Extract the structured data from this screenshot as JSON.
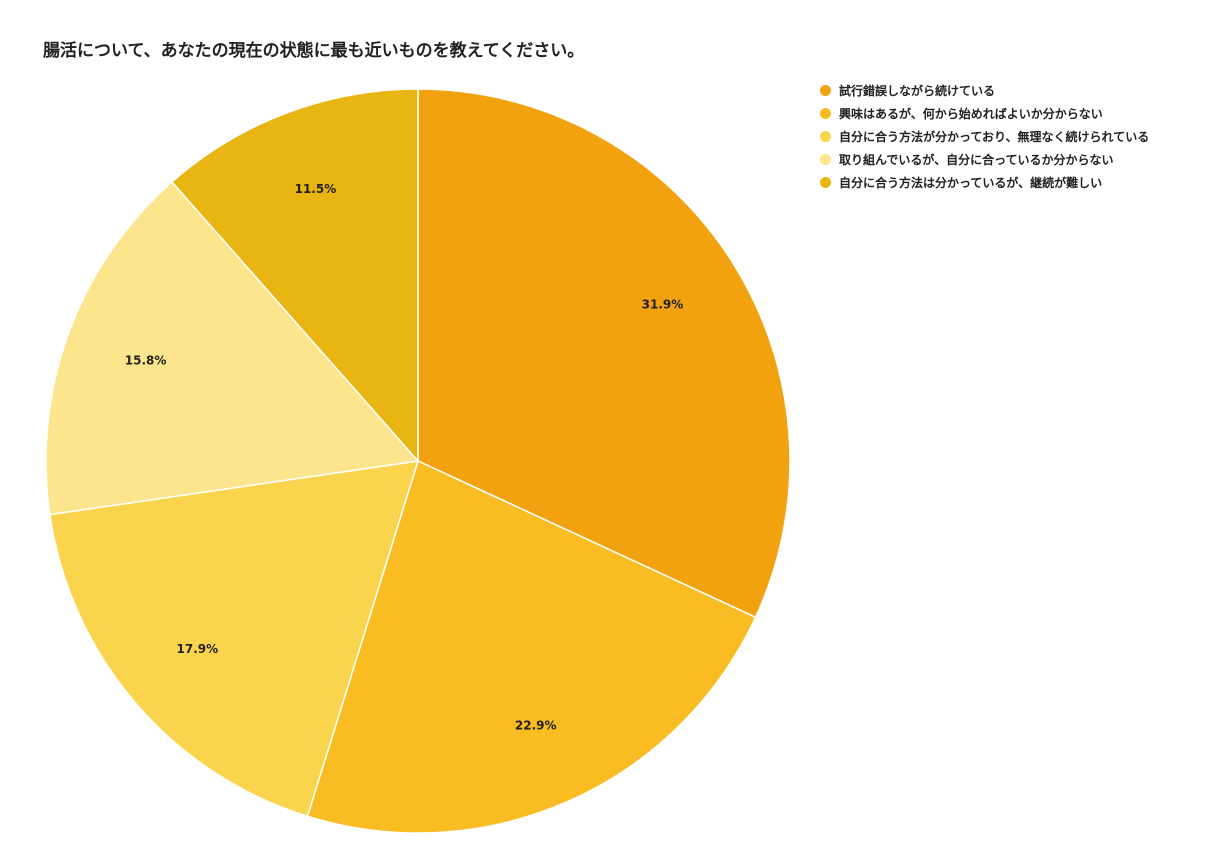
{
  "chart_data": {
    "type": "pie",
    "title": "腸活について、あなたの現在の状態に最も近いものを教えてください。",
    "legend_position": "top-right",
    "slices": [
      {
        "name": "試行錯誤しながら続けている",
        "value": 31.9,
        "label": "31.9%",
        "color": "#F2A20E"
      },
      {
        "name": "興味はあるが、何から始めればよいか分からない",
        "value": 22.9,
        "label": "22.9%",
        "color": "#F9BD23"
      },
      {
        "name": "自分に合う方法が分かっており、無理なく続けられている",
        "value": 17.9,
        "label": "17.9%",
        "color": "#FBD44E"
      },
      {
        "name": "取り組んでいるが、自分に合っているか分からない",
        "value": 15.8,
        "label": "15.8%",
        "color": "#FCE58C"
      },
      {
        "name": "自分に合う方法は分かっているが、継続が難しい",
        "value": 11.5,
        "label": "11.5%",
        "color": "#E9B512"
      }
    ]
  }
}
